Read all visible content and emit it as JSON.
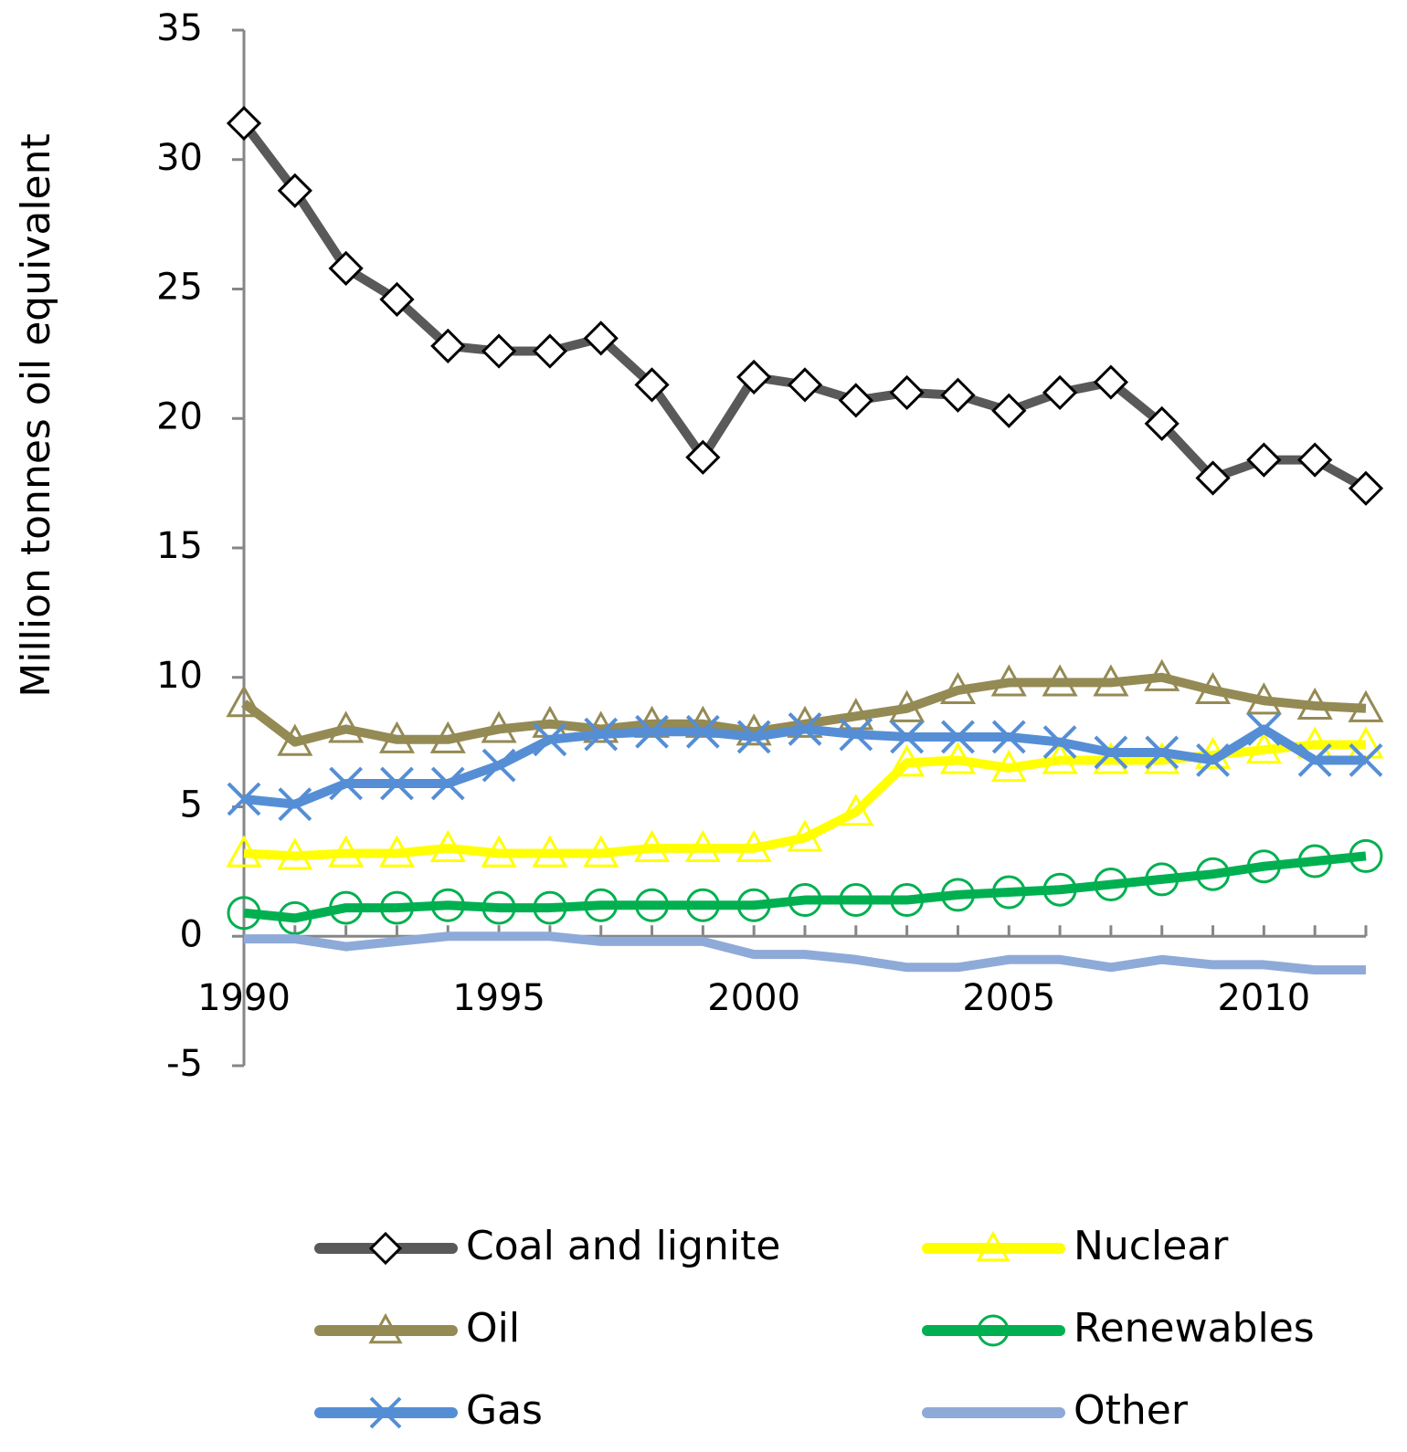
{
  "chart_data": {
    "type": "line",
    "y_label": "Million tonnes oil equivalent",
    "x": [
      1990,
      1991,
      1992,
      1993,
      1994,
      1995,
      1996,
      1997,
      1998,
      1999,
      2000,
      2001,
      2002,
      2003,
      2004,
      2005,
      2006,
      2007,
      2008,
      2009,
      2010,
      2011,
      2012
    ],
    "xlim": [
      1990,
      2012
    ],
    "xticks": [
      1990,
      1995,
      2000,
      2005,
      2010
    ],
    "ylim": [
      -5,
      35
    ],
    "yticks": [
      -5,
      0,
      5,
      10,
      15,
      20,
      25,
      30,
      35
    ],
    "series": [
      {
        "name": "Coal and lignite",
        "color": "#595959",
        "marker": "diamond",
        "values": [
          31.4,
          28.8,
          25.8,
          24.6,
          22.8,
          22.6,
          22.6,
          23.1,
          21.3,
          18.5,
          21.6,
          21.3,
          20.7,
          21.0,
          20.9,
          20.3,
          21.0,
          21.4,
          19.8,
          17.7,
          18.4,
          18.4,
          17.3
        ]
      },
      {
        "name": "Nuclear",
        "color": "#ffff00",
        "marker": "triangle",
        "values": [
          3.2,
          3.1,
          3.2,
          3.2,
          3.4,
          3.2,
          3.2,
          3.2,
          3.4,
          3.4,
          3.4,
          3.8,
          4.8,
          6.7,
          6.8,
          6.5,
          6.8,
          6.8,
          6.8,
          7.0,
          7.2,
          7.4,
          7.4
        ]
      },
      {
        "name": "Oil",
        "color": "#948a54",
        "marker": "triangle",
        "values": [
          9.0,
          7.5,
          8.0,
          7.6,
          7.6,
          8.0,
          8.2,
          8.0,
          8.2,
          8.2,
          7.9,
          8.2,
          8.5,
          8.8,
          9.5,
          9.8,
          9.8,
          9.8,
          10.0,
          9.5,
          9.1,
          8.9,
          8.8
        ]
      },
      {
        "name": "Renewables",
        "color": "#00b050",
        "marker": "circle",
        "values": [
          0.9,
          0.7,
          1.1,
          1.1,
          1.2,
          1.1,
          1.1,
          1.2,
          1.2,
          1.2,
          1.2,
          1.4,
          1.4,
          1.4,
          1.6,
          1.7,
          1.8,
          2.0,
          2.2,
          2.4,
          2.7,
          2.9,
          3.1
        ]
      },
      {
        "name": "Gas",
        "color": "#558ed5",
        "marker": "x",
        "values": [
          5.3,
          5.1,
          5.9,
          5.9,
          5.9,
          6.6,
          7.6,
          7.8,
          7.9,
          7.9,
          7.7,
          8.0,
          7.8,
          7.7,
          7.7,
          7.7,
          7.5,
          7.1,
          7.1,
          6.8,
          8.0,
          6.8,
          6.8
        ]
      },
      {
        "name": "Other",
        "color": "#8eaad8",
        "marker": "none",
        "values": [
          -0.1,
          -0.1,
          -0.4,
          -0.2,
          0,
          0,
          0,
          -0.2,
          -0.2,
          -0.2,
          -0.7,
          -0.7,
          -0.9,
          -1.2,
          -1.2,
          -0.9,
          -0.9,
          -1.2,
          -0.9,
          -1.1,
          -1.1,
          -1.3,
          -1.3
        ]
      }
    ]
  }
}
